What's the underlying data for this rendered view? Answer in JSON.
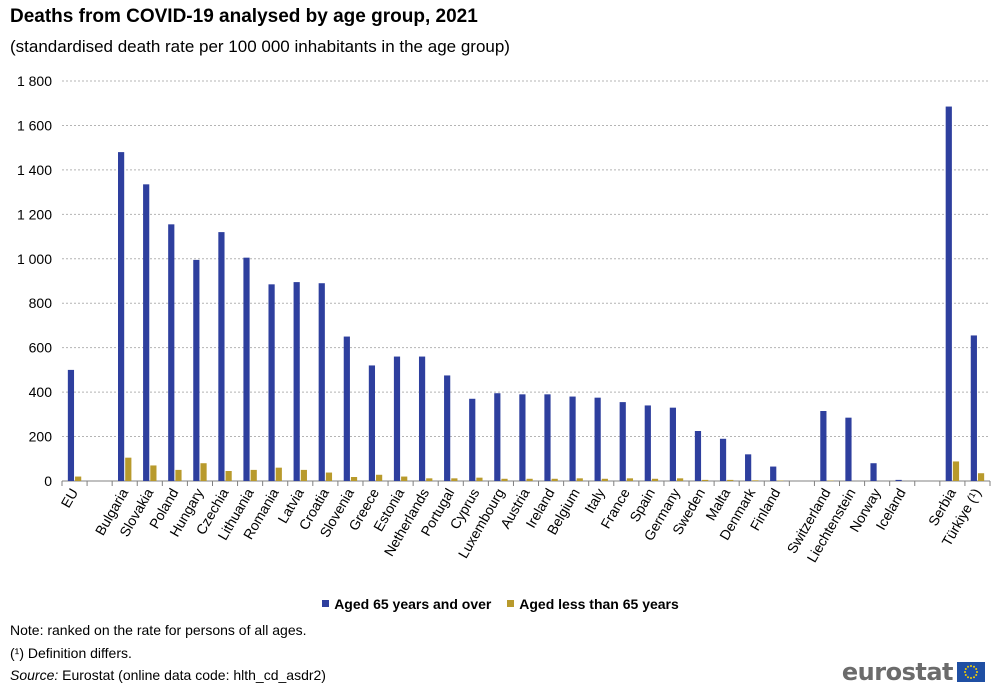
{
  "title": "Deaths from COVID-19 analysed by age group, 2021",
  "subtitle": "(standardised death rate per 100 000 inhabitants in the age group)",
  "colors": {
    "series_65_plus": "#2e3f9e",
    "series_under_65": "#b89a2c",
    "grid": "#b4b4b4",
    "axis": "#808080"
  },
  "legend": {
    "item1": "Aged 65 years and over",
    "item2": "Aged less than 65 years"
  },
  "notes": {
    "note1": "Note: ranked on the rate for persons of all ages.",
    "note2": "(¹) Definition differs.",
    "source_label": "Source:",
    "source_text": " Eurostat (online data code: hlth_cd_asdr2)"
  },
  "logo": {
    "text": "eurostat",
    "icon": "eu-flag-icon"
  },
  "chart_data": {
    "type": "bar",
    "ylim": [
      0,
      1800
    ],
    "yticks": [
      0,
      200,
      400,
      600,
      800,
      1000,
      1200,
      1400,
      1600,
      1800
    ],
    "ytick_labels": [
      "0",
      "200",
      "400",
      "600",
      "800",
      "1 000",
      "1 200",
      "1 400",
      "1 600",
      "1 800"
    ],
    "grid": true,
    "legend_position": "bottom",
    "categories": [
      "EU",
      "",
      "Bulgaria",
      "Slovakia",
      "Poland",
      "Hungary",
      "Czechia",
      "Lithuania",
      "Romania",
      "Latvia",
      "Croatia",
      "Slovenia",
      "Greece",
      "Estonia",
      "Netherlands",
      "Portugal",
      "Cyprus",
      "Luxembourg",
      "Austria",
      "Ireland",
      "Belgium",
      "Italy",
      "France",
      "Spain",
      "Germany",
      "Sweden",
      "Malta",
      "Denmark",
      "Finland",
      "",
      "Switzerland",
      "Liechtenstein",
      "Norway",
      "Iceland",
      "",
      "Serbia",
      "Türkiye (¹)"
    ],
    "series": [
      {
        "name": "Aged 65 years and over",
        "values": [
          500,
          null,
          1480,
          1335,
          1155,
          995,
          1120,
          1005,
          885,
          895,
          890,
          650,
          520,
          560,
          560,
          475,
          370,
          395,
          390,
          390,
          380,
          375,
          355,
          340,
          330,
          225,
          190,
          120,
          65,
          null,
          315,
          285,
          80,
          5,
          null,
          1685,
          655
        ]
      },
      {
        "name": "Aged less than 65 years",
        "values": [
          20,
          null,
          105,
          70,
          50,
          80,
          45,
          50,
          60,
          50,
          38,
          18,
          28,
          20,
          12,
          12,
          15,
          10,
          10,
          10,
          12,
          10,
          12,
          10,
          12,
          5,
          5,
          3,
          2,
          null,
          2,
          0,
          0,
          0,
          null,
          88,
          35
        ]
      }
    ]
  }
}
